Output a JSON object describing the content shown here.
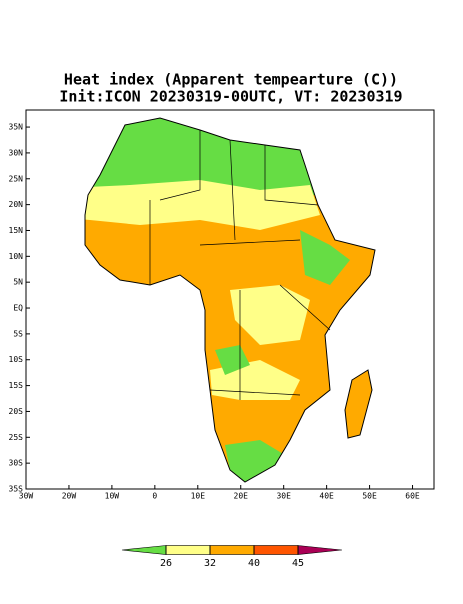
{
  "title": "Heat index (Apparent tempearture (C))",
  "subtitle": "Init:ICON 20230319-00UTC, VT: 20230319",
  "map": {
    "xlim": [
      -30,
      65
    ],
    "ylim": [
      -35,
      38.3
    ],
    "xticks": [
      {
        "value": -30,
        "label": "30W"
      },
      {
        "value": -20,
        "label": "20W"
      },
      {
        "value": -10,
        "label": "10W"
      },
      0,
      {
        "value": 10,
        "label": "10E"
      },
      {
        "value": 20,
        "label": "20E"
      },
      {
        "value": 30,
        "label": "30E"
      },
      {
        "value": 40,
        "label": "40E"
      },
      {
        "value": 50,
        "label": "50E"
      },
      {
        "value": 60,
        "label": "60E"
      }
    ],
    "yticks": [
      {
        "value": 35,
        "label": "35N"
      },
      {
        "value": 30,
        "label": "30N"
      },
      {
        "value": 25,
        "label": "25N"
      },
      {
        "value": 20,
        "label": "20N"
      },
      {
        "value": 15,
        "label": "15N"
      },
      {
        "value": 10,
        "label": "10N"
      },
      {
        "value": 5,
        "label": "5N"
      },
      {
        "value": 0,
        "label": "EQ"
      },
      {
        "value": -5,
        "label": "5S"
      },
      {
        "value": -10,
        "label": "10S"
      },
      {
        "value": -15,
        "label": "15S"
      },
      {
        "value": -20,
        "label": "20S"
      },
      {
        "value": -25,
        "label": "25S"
      },
      {
        "value": -30,
        "label": "30S"
      },
      {
        "value": -35,
        "label": "35S"
      }
    ]
  },
  "colorbar": {
    "levels": [
      26,
      32,
      40,
      45
    ],
    "colors": [
      "#66dd44",
      "#ffff88",
      "#ffaa00",
      "#ff5500",
      "#aa0055"
    ]
  }
}
